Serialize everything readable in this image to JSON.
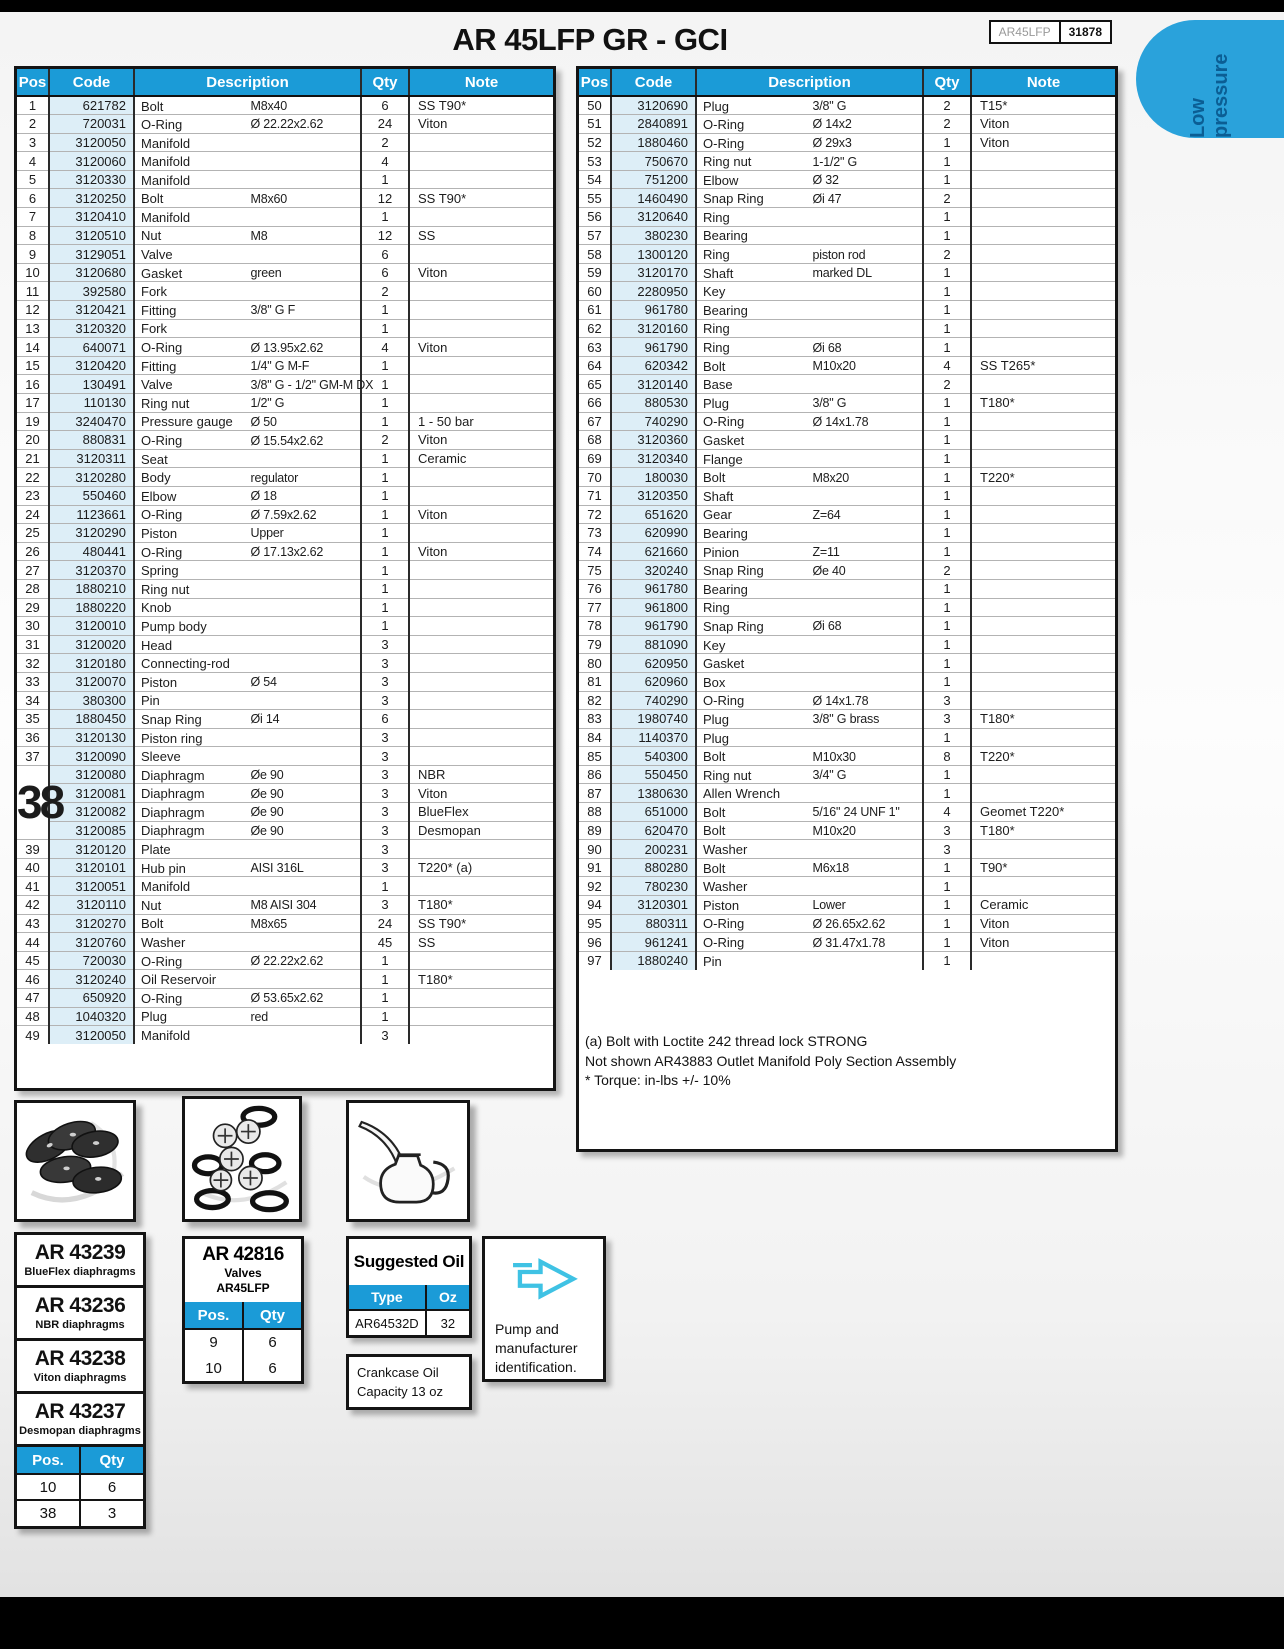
{
  "header": {
    "title": "AR 45LFP GR - GCI",
    "model_label": "AR45LFP",
    "model_number": "31878",
    "badge": "Low pressure",
    "accent_blue": "#1b9bd7",
    "badge_blue": "#2aa2db",
    "arrow_cyan": "#3fc2e4"
  },
  "columns": {
    "pos": "Pos",
    "code": "Code",
    "description": "Description",
    "qty": "Qty",
    "note": "Note"
  },
  "left_rows": [
    [
      "1",
      "621782",
      "Bolt",
      "M8x40",
      "6",
      "SS T90*"
    ],
    [
      "2",
      "720031",
      "O-Ring",
      "Ø 22.22x2.62",
      "24",
      "Viton"
    ],
    [
      "3",
      "3120050",
      "Manifold",
      "",
      "2",
      ""
    ],
    [
      "4",
      "3120060",
      "Manifold",
      "",
      "4",
      ""
    ],
    [
      "5",
      "3120330",
      "Manifold",
      "",
      "1",
      ""
    ],
    [
      "6",
      "3120250",
      "Bolt",
      "M8x60",
      "12",
      "SS T90*"
    ],
    [
      "7",
      "3120410",
      "Manifold",
      "",
      "1",
      ""
    ],
    [
      "8",
      "3120510",
      "Nut",
      "M8",
      "12",
      "SS"
    ],
    [
      "9",
      "3129051",
      "Valve",
      "",
      "6",
      ""
    ],
    [
      "10",
      "3120680",
      "Gasket",
      "green",
      "6",
      "Viton"
    ],
    [
      "11",
      "392580",
      "Fork",
      "",
      "2",
      ""
    ],
    [
      "12",
      "3120421",
      "Fitting",
      "3/8\" G F",
      "1",
      ""
    ],
    [
      "13",
      "3120320",
      "Fork",
      "",
      "1",
      ""
    ],
    [
      "14",
      "640071",
      "O-Ring",
      "Ø 13.95x2.62",
      "4",
      "Viton"
    ],
    [
      "15",
      "3120420",
      "Fitting",
      "1/4\" G M-F",
      "1",
      ""
    ],
    [
      "16",
      "130491",
      "Valve",
      "3/8\" G - 1/2\" GM-M DX",
      "1",
      ""
    ],
    [
      "17",
      "110130",
      "Ring nut",
      "1/2\" G",
      "1",
      ""
    ],
    [
      "19",
      "3240470",
      "Pressure gauge",
      "Ø 50",
      "1",
      "1 - 50 bar"
    ],
    [
      "20",
      "880831",
      "O-Ring",
      "Ø 15.54x2.62",
      "2",
      "Viton"
    ],
    [
      "21",
      "3120311",
      "Seat",
      "",
      "1",
      "Ceramic"
    ],
    [
      "22",
      "3120280",
      "Body",
      "regulator",
      "1",
      ""
    ],
    [
      "23",
      "550460",
      "Elbow",
      "Ø 18",
      "1",
      ""
    ],
    [
      "24",
      "1123661",
      "O-Ring",
      "Ø 7.59x2.62",
      "1",
      "Viton"
    ],
    [
      "25",
      "3120290",
      "Piston",
      "Upper",
      "1",
      ""
    ],
    [
      "26",
      "480441",
      "O-Ring",
      "Ø 17.13x2.62",
      "1",
      "Viton"
    ],
    [
      "27",
      "3120370",
      "Spring",
      "",
      "1",
      ""
    ],
    [
      "28",
      "1880210",
      "Ring nut",
      "",
      "1",
      ""
    ],
    [
      "29",
      "1880220",
      "Knob",
      "",
      "1",
      ""
    ],
    [
      "30",
      "3120010",
      "Pump body",
      "",
      "1",
      ""
    ],
    [
      "31",
      "3120020",
      "Head",
      "",
      "3",
      ""
    ],
    [
      "32",
      "3120180",
      "Connecting-rod",
      "",
      "3",
      ""
    ],
    [
      "33",
      "3120070",
      "Piston",
      "Ø 54",
      "3",
      ""
    ],
    [
      "34",
      "380300",
      "Pin",
      "",
      "3",
      ""
    ],
    [
      "35",
      "1880450",
      "Snap Ring",
      "Øi 14",
      "6",
      ""
    ],
    [
      "36",
      "3120130",
      "Piston ring",
      "",
      "3",
      ""
    ],
    [
      "37",
      "3120090",
      "Sleeve",
      "",
      "3",
      ""
    ],
    [
      "38@4",
      "3120080",
      "Diaphragm",
      "Øe 90",
      "3",
      "NBR"
    ],
    [
      "",
      "3120081",
      "Diaphragm",
      "Øe 90",
      "3",
      "Viton"
    ],
    [
      "",
      "3120082",
      "Diaphragm",
      "Øe 90",
      "3",
      "BlueFlex"
    ],
    [
      "",
      "3120085",
      "Diaphragm",
      "Øe 90",
      "3",
      "Desmopan"
    ],
    [
      "39",
      "3120120",
      "Plate",
      "",
      "3",
      ""
    ],
    [
      "40",
      "3120101",
      "Hub pin",
      "AISI 316L",
      "3",
      "T220* (a)"
    ],
    [
      "41",
      "3120051",
      "Manifold",
      "",
      "1",
      ""
    ],
    [
      "42",
      "3120110",
      "Nut",
      "M8 AISI 304",
      "3",
      "T180*"
    ],
    [
      "43",
      "3120270",
      "Bolt",
      "M8x65",
      "24",
      "SS T90*"
    ],
    [
      "44",
      "3120760",
      "Washer",
      "",
      "45",
      "SS"
    ],
    [
      "45",
      "720030",
      "O-Ring",
      "Ø 22.22x2.62",
      "1",
      ""
    ],
    [
      "46",
      "3120240",
      "Oil Reservoir",
      "",
      "1",
      "T180*"
    ],
    [
      "47",
      "650920",
      "O-Ring",
      "Ø 53.65x2.62",
      "1",
      ""
    ],
    [
      "48",
      "1040320",
      "Plug",
      "red",
      "1",
      ""
    ],
    [
      "49",
      "3120050",
      "Manifold",
      "",
      "3",
      ""
    ]
  ],
  "right_rows": [
    [
      "50",
      "3120690",
      "Plug",
      "3/8\" G",
      "2",
      "T15*"
    ],
    [
      "51",
      "2840891",
      "O-Ring",
      "Ø 14x2",
      "2",
      "Viton"
    ],
    [
      "52",
      "1880460",
      "O-Ring",
      "Ø 29x3",
      "1",
      "Viton"
    ],
    [
      "53",
      "750670",
      "Ring nut",
      "1-1/2\" G",
      "1",
      ""
    ],
    [
      "54",
      "751200",
      "Elbow",
      "Ø 32",
      "1",
      ""
    ],
    [
      "55",
      "1460490",
      "Snap Ring",
      "Øi 47",
      "2",
      ""
    ],
    [
      "56",
      "3120640",
      "Ring",
      "",
      "1",
      ""
    ],
    [
      "57",
      "380230",
      "Bearing",
      "",
      "1",
      ""
    ],
    [
      "58",
      "1300120",
      "Ring",
      "piston rod",
      "2",
      ""
    ],
    [
      "59",
      "3120170",
      "Shaft",
      "marked DL",
      "1",
      ""
    ],
    [
      "60",
      "2280950",
      "Key",
      "",
      "1",
      ""
    ],
    [
      "61",
      "961780",
      "Bearing",
      "",
      "1",
      ""
    ],
    [
      "62",
      "3120160",
      "Ring",
      "",
      "1",
      ""
    ],
    [
      "63",
      "961790",
      "Ring",
      "Øi 68",
      "1",
      ""
    ],
    [
      "64",
      "620342",
      "Bolt",
      "M10x20",
      "4",
      "SS T265*"
    ],
    [
      "65",
      "3120140",
      "Base",
      "",
      "2",
      ""
    ],
    [
      "66",
      "880530",
      "Plug",
      "3/8\" G",
      "1",
      "T180*"
    ],
    [
      "67",
      "740290",
      "O-Ring",
      "Ø 14x1.78",
      "1",
      ""
    ],
    [
      "68",
      "3120360",
      "Gasket",
      "",
      "1",
      ""
    ],
    [
      "69",
      "3120340",
      "Flange",
      "",
      "1",
      ""
    ],
    [
      "70",
      "180030",
      "Bolt",
      "M8x20",
      "1",
      "T220*"
    ],
    [
      "71",
      "3120350",
      "Shaft",
      "",
      "1",
      ""
    ],
    [
      "72",
      "651620",
      "Gear",
      "Z=64",
      "1",
      ""
    ],
    [
      "73",
      "620990",
      "Bearing",
      "",
      "1",
      ""
    ],
    [
      "74",
      "621660",
      "Pinion",
      "Z=11",
      "1",
      ""
    ],
    [
      "75",
      "320240",
      "Snap Ring",
      "Øe 40",
      "2",
      ""
    ],
    [
      "76",
      "961780",
      "Bearing",
      "",
      "1",
      ""
    ],
    [
      "77",
      "961800",
      "Ring",
      "",
      "1",
      ""
    ],
    [
      "78",
      "961790",
      "Snap Ring",
      "Øi 68",
      "1",
      ""
    ],
    [
      "79",
      "881090",
      "Key",
      "",
      "1",
      ""
    ],
    [
      "80",
      "620950",
      "Gasket",
      "",
      "1",
      ""
    ],
    [
      "81",
      "620960",
      "Box",
      "",
      "1",
      ""
    ],
    [
      "82",
      "740290",
      "O-Ring",
      "Ø 14x1.78",
      "3",
      ""
    ],
    [
      "83",
      "1980740",
      "Plug",
      "3/8\" G brass",
      "3",
      "T180*"
    ],
    [
      "84",
      "1140370",
      "Plug",
      "",
      "1",
      ""
    ],
    [
      "85",
      "540300",
      "Bolt",
      "M10x30",
      "8",
      "T220*"
    ],
    [
      "86",
      "550450",
      "Ring nut",
      "3/4\" G",
      "1",
      ""
    ],
    [
      "87",
      "1380630",
      "Allen Wrench",
      "",
      "1",
      ""
    ],
    [
      "88",
      "651000",
      "Bolt",
      "5/16\" 24 UNF 1\"",
      "4",
      "Geomet T220*"
    ],
    [
      "89",
      "620470",
      "Bolt",
      "M10x20",
      "3",
      "T180*"
    ],
    [
      "90",
      "200231",
      "Washer",
      "",
      "3",
      ""
    ],
    [
      "91",
      "880280",
      "Bolt",
      "M6x18",
      "1",
      "T90*"
    ],
    [
      "92",
      "780230",
      "Washer",
      "",
      "1",
      ""
    ],
    [
      "94",
      "3120301",
      "Piston",
      "Lower",
      "1",
      "Ceramic"
    ],
    [
      "95",
      "880311",
      "O-Ring",
      "Ø 26.65x2.62",
      "1",
      "Viton"
    ],
    [
      "96",
      "961241",
      "O-Ring",
      "Ø 31.47x1.78",
      "1",
      "Viton"
    ],
    [
      "97",
      "1880240",
      "Pin",
      "",
      "1",
      ""
    ]
  ],
  "footnotes": [
    "(a) Bolt with Loctite 242 thread lock STRONG",
    "Not shown AR43883 Outlet Manifold Poly Section Assembly",
    "* Torque: in-lbs +/- 10%"
  ],
  "diaphragm_kits": {
    "items": [
      {
        "code": "AR 43239",
        "name": "BlueFlex diaphragms"
      },
      {
        "code": "AR 43236",
        "name": "NBR diaphragms"
      },
      {
        "code": "AR 43238",
        "name": "Viton diaphragms"
      },
      {
        "code": "AR 43237",
        "name": "Desmopan diaphragms"
      }
    ],
    "table": {
      "pos_label": "Pos.",
      "qty_label": "Qty",
      "rows": [
        [
          "10",
          "6"
        ],
        [
          "38",
          "3"
        ]
      ]
    }
  },
  "valves_kit": {
    "code": "AR 42816",
    "line1": "Valves",
    "line2": "AR45LFP",
    "table": {
      "pos_label": "Pos.",
      "qty_label": "Qty",
      "rows": [
        [
          "9",
          "6"
        ],
        [
          "10",
          "6"
        ]
      ]
    }
  },
  "oil": {
    "title": "Suggested Oil",
    "type_label": "Type",
    "oz_label": "Oz",
    "type_value": "AR64532D",
    "oz_value": "32",
    "crankcase_line1": "Crankcase Oil",
    "crankcase_line2": "Capacity 13 oz"
  },
  "pump_id": {
    "line1": "Pump and",
    "line2": "manufacturer",
    "line3": "identification."
  }
}
